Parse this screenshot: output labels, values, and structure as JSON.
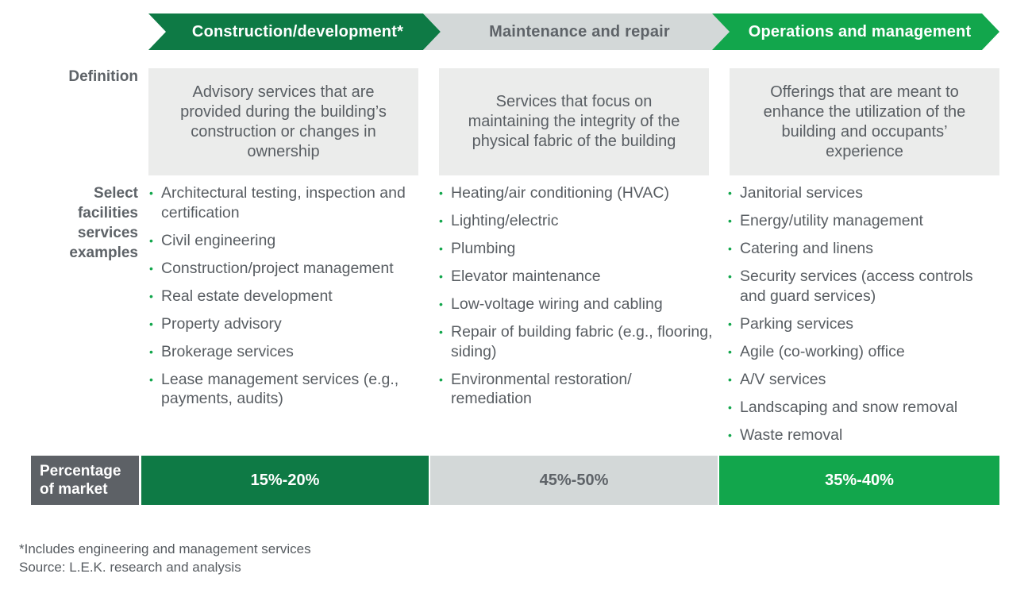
{
  "header": {
    "stages": [
      {
        "label": "Construction/development*",
        "color": "#0e7a45"
      },
      {
        "label": "Maintenance and repair",
        "color": "#d3d8d8"
      },
      {
        "label": "Operations and management",
        "color": "#12a64c"
      }
    ]
  },
  "row_labels": {
    "definition": "Definition",
    "examples_lines": [
      "Select",
      "facilities",
      "services",
      "examples"
    ],
    "percentage_lines": [
      "Percentage",
      "of market"
    ]
  },
  "definitions": [
    "Advisory services that are provided during the building’s construction or changes in ownership",
    "Services that focus on maintaining the integrity of the physical fabric of the building",
    "Offerings that are meant to enhance the utilization of the building and occupants’ experience"
  ],
  "examples": {
    "construction": [
      "Architectural testing, inspection and certification",
      "Civil engineering",
      "Construction/project management",
      "Real estate development",
      "Property advisory",
      "Brokerage services",
      "Lease management services (e.g., payments, audits)"
    ],
    "maintenance": [
      "Heating/air conditioning (HVAC)",
      "Lighting/electric",
      "Plumbing",
      "Elevator maintenance",
      "Low-voltage wiring and cabling",
      "Repair of building fabric (e.g., flooring, siding)",
      "Environmental restoration/ remediation"
    ],
    "operations": [
      "Janitorial services",
      "Energy/utility management",
      "Catering and linens",
      "Security services (access controls and guard services)",
      "Parking services",
      "Agile (co-working) office",
      "A/V services",
      "Landscaping and snow removal",
      "Waste removal"
    ]
  },
  "percentages": [
    "15%-20%",
    "45%-50%",
    "35%-40%"
  ],
  "footnotes": {
    "note": "*Includes engineering and management services",
    "source": "Source: L.E.K. research and analysis"
  }
}
